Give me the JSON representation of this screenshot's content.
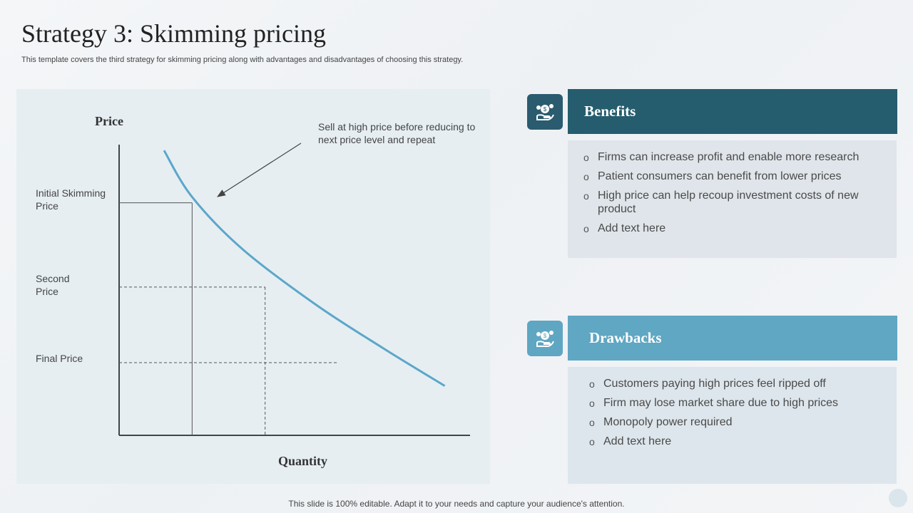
{
  "header": {
    "title": "Strategy 3: Skimming pricing",
    "subtitle": "This template covers the third strategy for skimming pricing along with advantages and disadvantages of choosing this strategy."
  },
  "chart": {
    "y_axis_title": "Price",
    "x_axis_title": "Quantity",
    "price_levels": [
      "Initial Skimming Price",
      "Second Price",
      "Final Price"
    ],
    "annotation": "Sell at high price before reducing to next price level and repeat"
  },
  "chart_data": {
    "type": "line",
    "title": "",
    "xlabel": "Quantity",
    "ylabel": "Price",
    "series": [
      {
        "name": "Demand curve",
        "x": [
          0.8,
          1.3,
          2.2,
          3.5,
          4.7,
          5.8
        ],
        "y": [
          9.8,
          8.2,
          6.4,
          4.5,
          3.0,
          1.7
        ]
      }
    ],
    "reference_levels": [
      {
        "label": "Initial Skimming Price",
        "price": 8.0,
        "quantity": 1.3,
        "style": "solid"
      },
      {
        "label": "Second Price",
        "price": 5.1,
        "quantity": 2.6,
        "style": "dashed"
      },
      {
        "label": "Final Price",
        "price": 2.5,
        "quantity": 3.9,
        "style": "dashed"
      }
    ],
    "xlim": [
      0,
      5
    ],
    "ylim": [
      0,
      10
    ]
  },
  "benefits": {
    "title": "Benefits",
    "icon": "money-hand-icon",
    "items": [
      "Firms can increase profit and enable more research",
      "Patient consumers can benefit from lower prices",
      "High price can help recoup investment costs of new product",
      "Add text here"
    ]
  },
  "drawbacks": {
    "title": "Drawbacks",
    "icon": "money-hand-icon",
    "items": [
      "Customers paying high prices feel ripped off",
      "Firm may lose market share due to high prices",
      "Monopoly power required",
      "Add text here"
    ]
  },
  "footer": {
    "text": "This slide is 100% editable. Adapt it to your needs and capture your audience's attention."
  },
  "colors": {
    "dark_teal": "#255c6e",
    "light_blue": "#5fa7c3",
    "curve": "#5ba7c9"
  }
}
